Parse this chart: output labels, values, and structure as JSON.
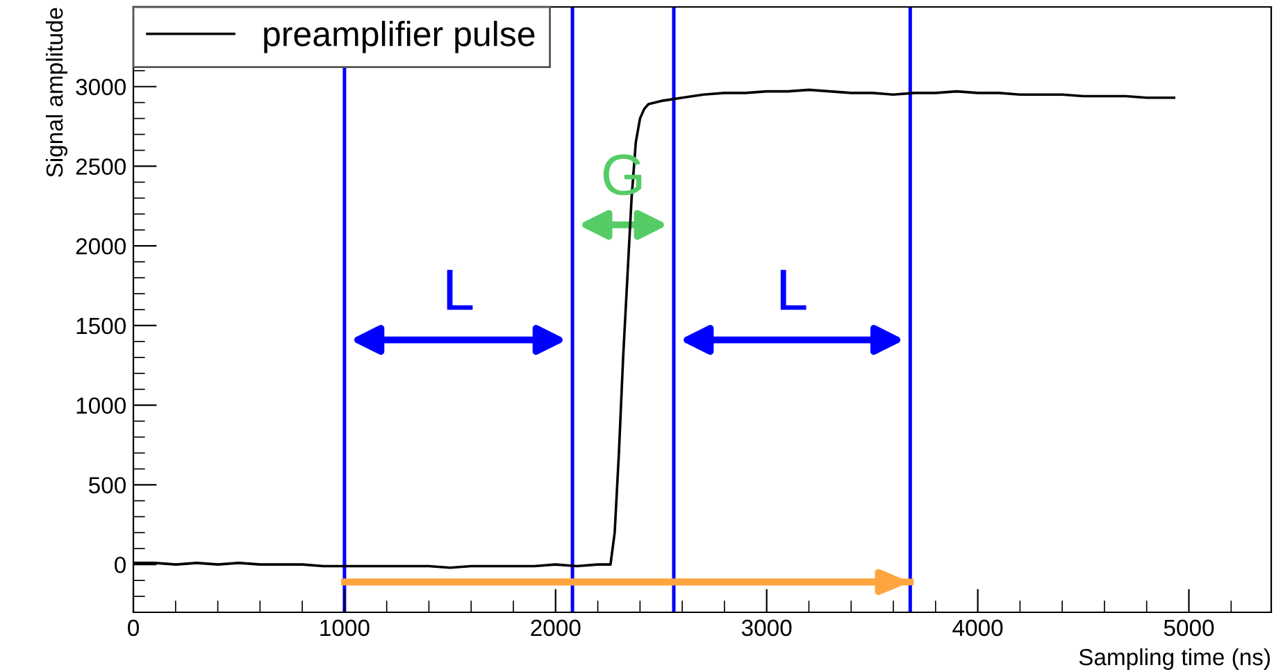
{
  "chart_data": {
    "type": "line",
    "xlabel": "Sampling time (ns)",
    "ylabel": "Signal amplitude",
    "xlim": [
      0,
      5390
    ],
    "ylim": [
      -300,
      3500
    ],
    "xticks": [
      0,
      1000,
      2000,
      3000,
      4000,
      5000
    ],
    "yticks": [
      0,
      500,
      1000,
      1500,
      2000,
      2500,
      3000
    ],
    "legend": "top left",
    "grid": false,
    "series": [
      {
        "name": "preamplifier pulse",
        "color": "#000000",
        "x": [
          0,
          100,
          200,
          300,
          400,
          500,
          600,
          700,
          800,
          900,
          1000,
          1100,
          1200,
          1300,
          1400,
          1500,
          1600,
          1700,
          1800,
          1900,
          2000,
          2100,
          2200,
          2260,
          2280,
          2300,
          2320,
          2340,
          2360,
          2380,
          2400,
          2420,
          2440,
          2470,
          2500,
          2550,
          2600,
          2700,
          2800,
          2900,
          3000,
          3100,
          3200,
          3300,
          3400,
          3500,
          3600,
          3700,
          3800,
          3900,
          4000,
          4100,
          4200,
          4300,
          4400,
          4500,
          4600,
          4700,
          4800,
          4930
        ],
        "values": [
          10,
          10,
          0,
          10,
          0,
          10,
          0,
          0,
          0,
          -10,
          -10,
          -10,
          -10,
          -10,
          -10,
          -20,
          -10,
          -10,
          -10,
          -10,
          0,
          -10,
          0,
          0,
          200,
          700,
          1300,
          1800,
          2300,
          2650,
          2800,
          2860,
          2890,
          2900,
          2910,
          2920,
          2930,
          2950,
          2960,
          2960,
          2970,
          2970,
          2980,
          2970,
          2960,
          2960,
          2950,
          2960,
          2960,
          2970,
          2960,
          2960,
          2950,
          2950,
          2950,
          2940,
          2940,
          2940,
          2930,
          2930
        ]
      },
      {
        "type": "line",
        "color": "#ffa540",
        "x": [
          1000,
          3680
        ],
        "values": [
          -110,
          -110
        ]
      }
    ],
    "ref_lines": [
      {
        "axis": "x",
        "value": 1000,
        "color": "#0000ff"
      },
      {
        "axis": "x",
        "value": 2080,
        "color": "#0000ff"
      },
      {
        "axis": "x",
        "value": 2560,
        "color": "#0000ff"
      },
      {
        "axis": "x",
        "value": 3680,
        "color": "#0000ff"
      }
    ],
    "annotations": [
      "L",
      "G",
      "L"
    ]
  }
}
